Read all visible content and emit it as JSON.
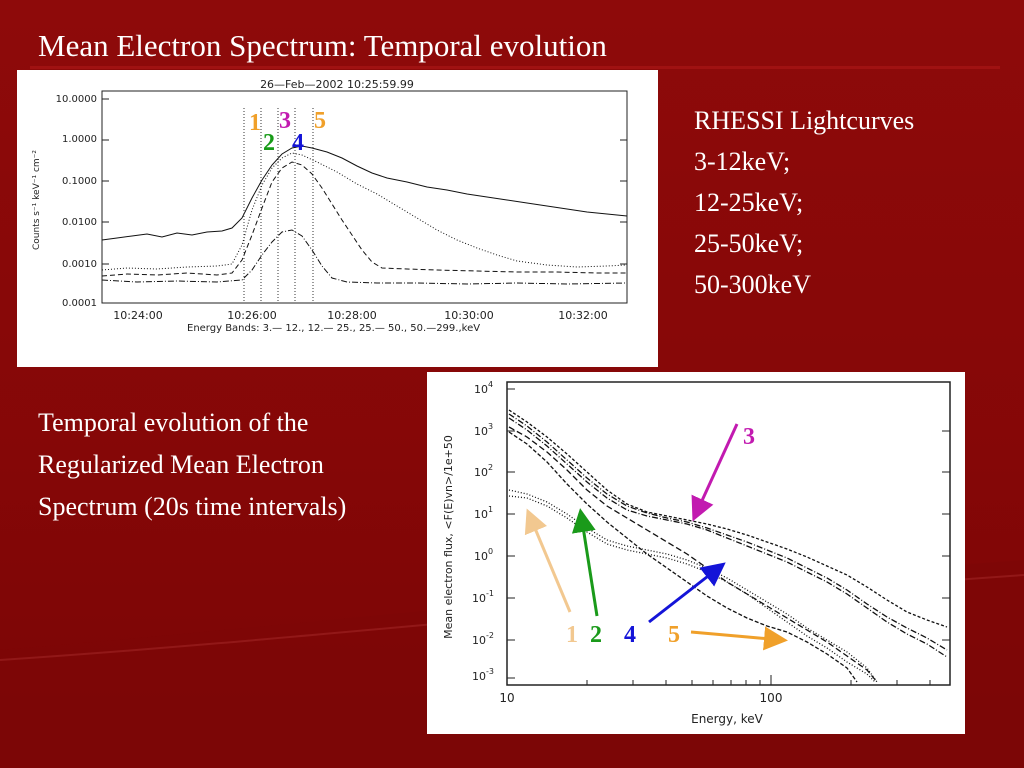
{
  "slide_title": "Mean Electron Spectrum: Temporal evolution",
  "top_plot": {
    "header": "26—Feb—2002 10:25:59.99",
    "ylabel": "Counts s⁻¹ keV⁻¹ cm⁻²",
    "y_ticks": [
      "10.0000",
      "1.0000",
      "0.1000",
      "0.0100",
      "0.0010",
      "0.0001"
    ],
    "x_ticks": [
      "10:24:00",
      "10:26:00",
      "10:28:00",
      "10:30:00",
      "10:32:00"
    ],
    "energy_bands": "Energy Bands:   3.— 12.,  12.— 25.,  25.— 50.,  50.—299.,keV",
    "interval_labels": [
      "1",
      "2",
      "3",
      "4",
      "5"
    ]
  },
  "colors": {
    "interval_1": "#f0a02a",
    "interval_2": "#179b17",
    "interval_3": "#c21ab0",
    "interval_4": "#1414d8",
    "interval_5": "#f0a02a",
    "arrow_1": "#f2c890",
    "arrow_2": "#1a9a1a",
    "arrow_3": "#c21ab0",
    "arrow_4": "#1414d8",
    "arrow_5": "#f0a02a"
  },
  "lightcurves_text": {
    "heading": "RHESSI Lightcurves",
    "bands": [
      "3-12keV;",
      "12-25keV;",
      "25-50keV;",
      "50-300keV"
    ]
  },
  "paragraph": [
    "Temporal evolution of the",
    "Regularized Mean Electron",
    "Spectrum (20s time intervals)"
  ],
  "bottom_plot": {
    "ylabel": "Mean electron flux, <F(E)vn>/1e+50",
    "xlabel": "Energy, keV",
    "y_ticks": [
      {
        "base": "10",
        "exp": "4"
      },
      {
        "base": "10",
        "exp": "3"
      },
      {
        "base": "10",
        "exp": "2"
      },
      {
        "base": "10",
        "exp": "1"
      },
      {
        "base": "10",
        "exp": "0"
      },
      {
        "base": "10",
        "exp": "-1"
      },
      {
        "base": "10",
        "exp": "-2"
      },
      {
        "base": "10",
        "exp": "-3"
      }
    ],
    "x_ticks": [
      "10",
      "100"
    ],
    "callouts": [
      "1",
      "2",
      "3",
      "4",
      "5"
    ]
  }
}
